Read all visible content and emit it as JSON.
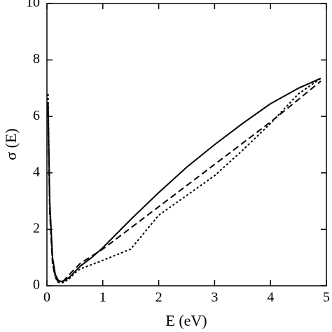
{
  "chart_data": {
    "type": "line",
    "x_label": "E (eV)",
    "y_label": "σ (E)",
    "x": [
      0.02,
      0.05,
      0.1,
      0.15,
      0.2,
      0.25,
      0.3,
      0.4,
      0.5,
      0.6,
      0.8,
      1,
      1.5,
      2,
      2.5,
      3,
      3.5,
      4,
      4.5,
      4.9
    ],
    "series": [
      {
        "color": "#000000",
        "dash": "solid",
        "values": [
          6.5,
          3.0,
          1.0,
          0.4,
          0.2,
          0.15,
          0.17,
          0.3,
          0.5,
          0.7,
          1.0,
          1.35,
          2.35,
          3.3,
          4.2,
          5.0,
          5.75,
          6.45,
          7.0,
          7.35
        ]
      },
      {
        "color": "#000000",
        "dash": "dashed",
        "values": [
          6.2,
          2.6,
          0.8,
          0.3,
          0.15,
          0.13,
          0.18,
          0.4,
          0.6,
          0.8,
          1.05,
          1.3,
          2.05,
          2.8,
          3.55,
          4.3,
          5.05,
          5.8,
          6.6,
          7.25
        ]
      },
      {
        "color": "#000000",
        "dash": "dotted",
        "values": [
          6.8,
          2.8,
          0.8,
          0.3,
          0.12,
          0.1,
          0.12,
          0.25,
          0.45,
          0.6,
          0.75,
          0.9,
          1.3,
          2.5,
          3.2,
          3.9,
          4.8,
          5.75,
          6.8,
          7.35
        ]
      }
    ],
    "xlim": [
      0,
      5
    ],
    "ylim": [
      0,
      10
    ],
    "xticks": [
      0,
      1,
      2,
      3,
      4,
      5
    ],
    "yticks": [
      0,
      2,
      4,
      6,
      8,
      10
    ]
  }
}
